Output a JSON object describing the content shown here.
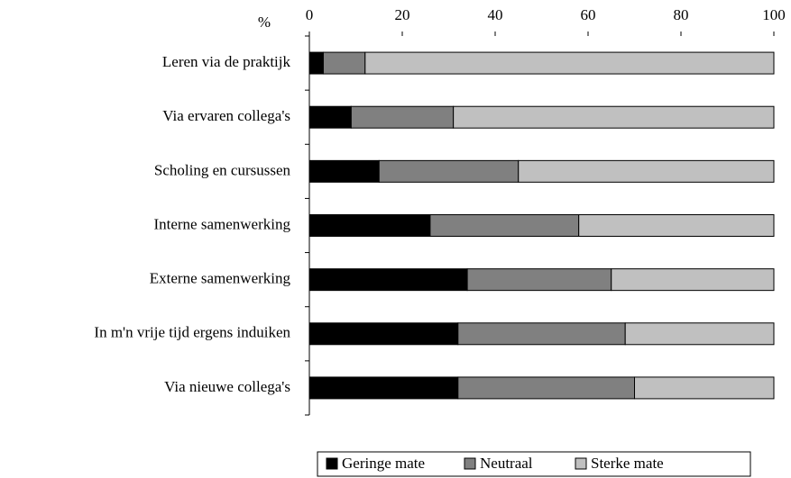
{
  "chart_data": {
    "type": "stacked-barh",
    "axis_label": "%",
    "categories": [
      "Leren via de praktijk",
      "Via ervaren collega's",
      "Scholing en cursussen",
      "Interne samenwerking",
      "Externe samenwerking",
      "In m'n vrije tijd ergens induiken",
      "Via  nieuwe collega's"
    ],
    "series": [
      {
        "name": "Geringe mate",
        "color": "#000000",
        "values": [
          3,
          9,
          15,
          26,
          34,
          32,
          32
        ]
      },
      {
        "name": "Neutraal",
        "color": "#808080",
        "values": [
          9,
          22,
          30,
          32,
          31,
          36,
          38
        ]
      },
      {
        "name": "Sterke mate",
        "color": "#c0c0c0",
        "values": [
          88,
          69,
          55,
          42,
          35,
          32,
          30
        ]
      }
    ],
    "xlim": [
      0,
      100
    ],
    "xticks": [
      0,
      20,
      40,
      60,
      80,
      100
    ],
    "legend": "bottom"
  }
}
